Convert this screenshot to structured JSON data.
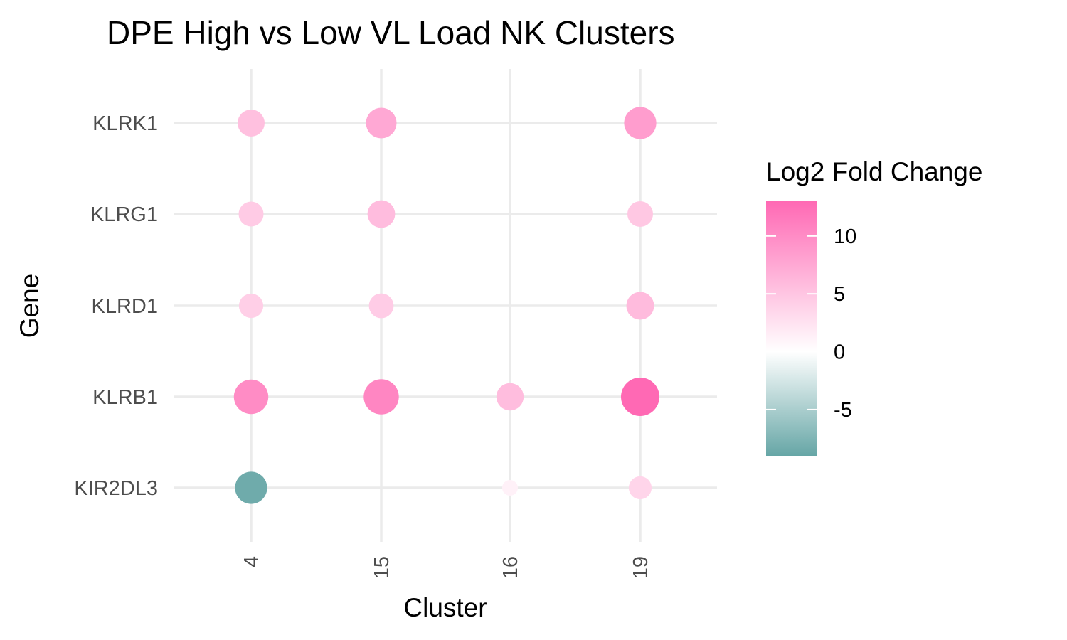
{
  "chart_data": {
    "type": "scatter",
    "title": "DPE High vs Low VL Load NK Clusters",
    "xlabel": "Cluster",
    "ylabel": "Gene",
    "x_categories": [
      "4",
      "15",
      "16",
      "19"
    ],
    "y_categories": [
      "KLRK1",
      "KLRG1",
      "KLRD1",
      "KLRB1",
      "KIR2DL3"
    ],
    "points": [
      {
        "cluster": "4",
        "gene": "KLRK1",
        "log2fc": 5.5
      },
      {
        "cluster": "15",
        "gene": "KLRK1",
        "log2fc": 7.5
      },
      {
        "cluster": "19",
        "gene": "KLRK1",
        "log2fc": 8.5
      },
      {
        "cluster": "4",
        "gene": "KLRG1",
        "log2fc": 4.5
      },
      {
        "cluster": "15",
        "gene": "KLRG1",
        "log2fc": 5.8
      },
      {
        "cluster": "19",
        "gene": "KLRG1",
        "log2fc": 4.8
      },
      {
        "cluster": "4",
        "gene": "KLRD1",
        "log2fc": 4.2
      },
      {
        "cluster": "15",
        "gene": "KLRD1",
        "log2fc": 4.4
      },
      {
        "cluster": "19",
        "gene": "KLRD1",
        "log2fc": 5.9
      },
      {
        "cluster": "4",
        "gene": "KLRB1",
        "log2fc": 10.0
      },
      {
        "cluster": "15",
        "gene": "KLRB1",
        "log2fc": 10.5
      },
      {
        "cluster": "16",
        "gene": "KLRB1",
        "log2fc": 5.7
      },
      {
        "cluster": "19",
        "gene": "KLRB1",
        "log2fc": 13.0
      },
      {
        "cluster": "4",
        "gene": "KIR2DL3",
        "log2fc": -8.5
      },
      {
        "cluster": "16",
        "gene": "KIR2DL3",
        "log2fc": 1.2
      },
      {
        "cluster": "19",
        "gene": "KIR2DL3",
        "log2fc": 3.6
      }
    ],
    "size_encoding": "abs(log2fc)",
    "legend": {
      "title": "Log2 Fold Change",
      "position": "right",
      "ticks": [
        10,
        5,
        0,
        -5
      ],
      "range": [
        -9,
        13
      ],
      "colors": {
        "low": "#66a6a6",
        "mid": "#ffffff",
        "high": "#ff69b4"
      }
    },
    "grid": true
  }
}
